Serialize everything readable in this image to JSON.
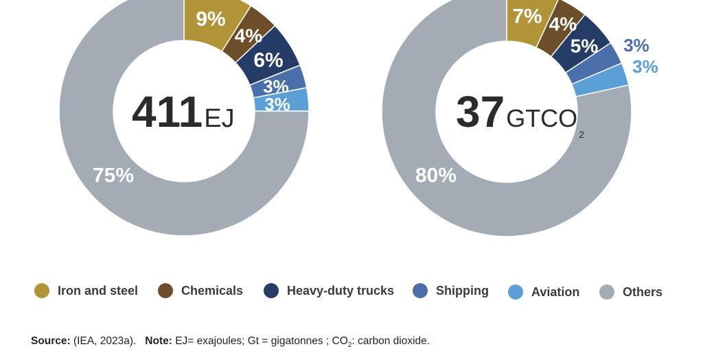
{
  "colors": {
    "iron": "#B19338",
    "chemicals": "#6C4F2A",
    "trucks": "#253D66",
    "shipping": "#4B6FAA",
    "aviation": "#5A9FD5",
    "others": "#A3ACB4"
  },
  "chart_data": [
    {
      "type": "pie",
      "center_value": "411",
      "center_unit": "EJ",
      "center_unit_sub": "",
      "slices": [
        {
          "name": "Iron and steel",
          "value": 9,
          "label": "9%",
          "color_key": "iron"
        },
        {
          "name": "Chemicals",
          "value": 4,
          "label": "4%",
          "color_key": "chemicals"
        },
        {
          "name": "Heavy-duty trucks",
          "value": 6,
          "label": "6%",
          "color_key": "trucks"
        },
        {
          "name": "Shipping",
          "value": 3,
          "label": "3%",
          "color_key": "shipping"
        },
        {
          "name": "Aviation",
          "value": 3,
          "label": "3%",
          "color_key": "aviation"
        },
        {
          "name": "Others",
          "value": 75,
          "label": "75%",
          "color_key": "others"
        }
      ]
    },
    {
      "type": "pie",
      "center_value": "37",
      "center_unit": "GTCO",
      "center_unit_sub": "2",
      "slices": [
        {
          "name": "Iron and steel",
          "value": 7,
          "label": "7%",
          "color_key": "iron"
        },
        {
          "name": "Chemicals",
          "value": 4,
          "label": "4%",
          "color_key": "chemicals"
        },
        {
          "name": "Heavy-duty trucks",
          "value": 5,
          "label": "5%",
          "color_key": "trucks"
        },
        {
          "name": "Shipping",
          "value": 3,
          "label": "3%",
          "color_key": "shipping"
        },
        {
          "name": "Aviation",
          "value": 3,
          "label": "3%",
          "color_key": "aviation"
        },
        {
          "name": "Others",
          "value": 80,
          "label": "80%",
          "color_key": "others"
        }
      ]
    }
  ],
  "legend": [
    {
      "label": "Iron and steel",
      "color_key": "iron"
    },
    {
      "label": "Chemicals",
      "color_key": "chemicals"
    },
    {
      "label": "Heavy-duty trucks",
      "color_key": "trucks"
    },
    {
      "label": "Shipping",
      "color_key": "shipping"
    },
    {
      "label": "Aviation",
      "color_key": "aviation"
    },
    {
      "label": "Others",
      "color_key": "others"
    }
  ],
  "footer": {
    "source_label": "Source:",
    "source_text": " (IEA, 2023a).   ",
    "note_label": "Note:",
    "note_text": " EJ= exajoules; Gt = gigatonnes ; CO",
    "note_sub": "2",
    "note_tail": ": carbon dioxide."
  }
}
